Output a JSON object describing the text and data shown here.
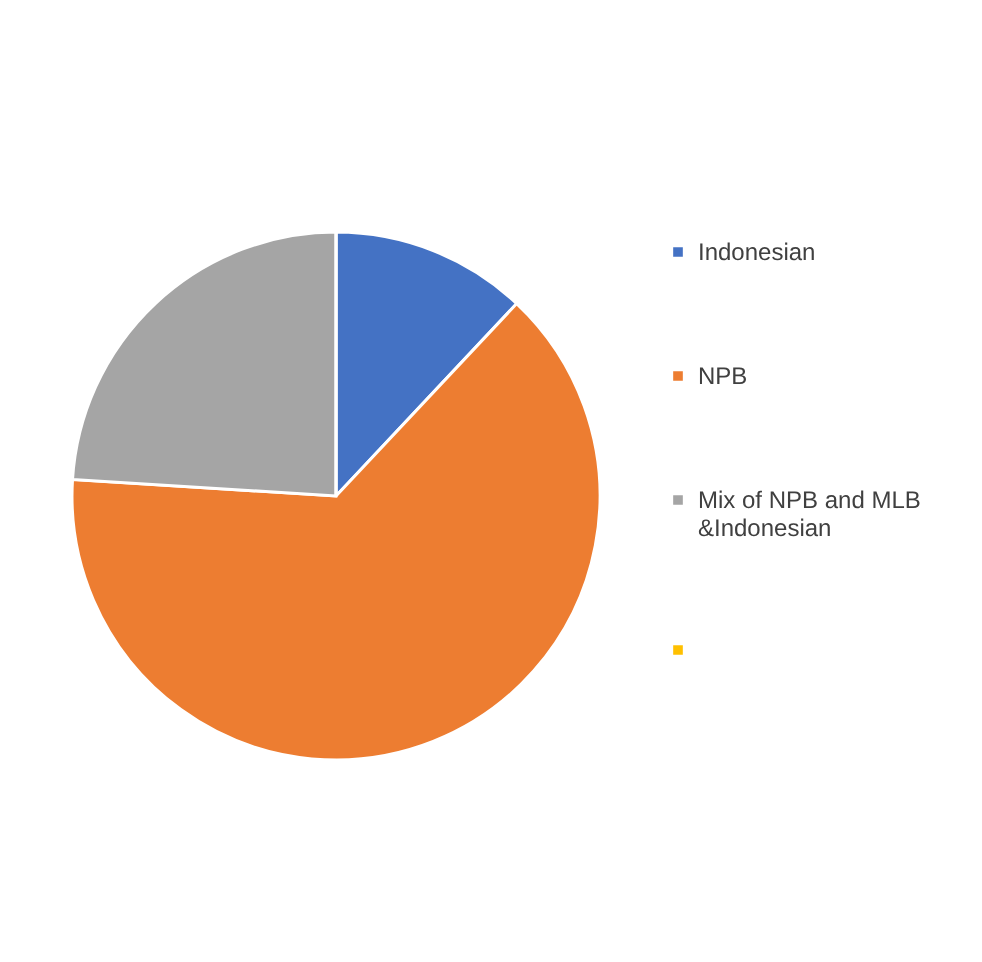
{
  "chart_data": {
    "type": "pie",
    "categories": [
      "Indonesian",
      "NPB",
      "Mix of NPB and MLB &Indonesian",
      null
    ],
    "values": [
      12,
      64,
      24,
      0
    ],
    "colors": [
      "#4472c4",
      "#ed7d31",
      "#a5a5a5",
      "#ffc000"
    ],
    "legend": "right"
  }
}
